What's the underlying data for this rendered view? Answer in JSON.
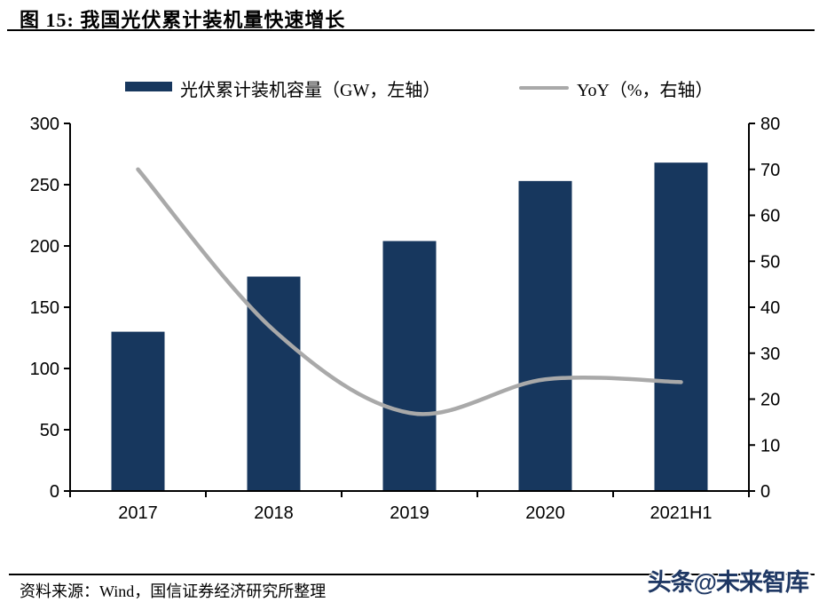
{
  "header": {
    "title": "图 15:  我国光伏累计装机量快速增长"
  },
  "legend": {
    "bar_label": "光伏累计装机容量（GW，左轴）",
    "line_label": "YoY（%，右轴）"
  },
  "colors": {
    "bar": "#17375E",
    "line": "#A9A9A9",
    "axis": "#000000",
    "watermark": "#1F3864"
  },
  "chart_data": {
    "type": "bar",
    "subtype": "bar+line combo",
    "categories": [
      "2017",
      "2018",
      "2019",
      "2020",
      "2021H1"
    ],
    "series": [
      {
        "name": "光伏累计装机容量（GW，左轴）",
        "type": "bar",
        "axis": "left",
        "color": "#17375E",
        "values": [
          130,
          175,
          204,
          253,
          268
        ]
      },
      {
        "name": "YoY（%，右轴）",
        "type": "line",
        "axis": "right",
        "color": "#A9A9A9",
        "smooth": true,
        "values": [
          70,
          35,
          17,
          24.3,
          23.7
        ]
      }
    ],
    "title": "我国光伏累计装机量快速增长",
    "xlabel": "",
    "ylabel_left": "GW",
    "ylabel_right": "%",
    "left_axis": {
      "min": 0,
      "max": 300,
      "ticks": [
        0,
        50,
        100,
        150,
        200,
        250,
        300
      ]
    },
    "right_axis": {
      "min": 0,
      "max": 80,
      "ticks": [
        0,
        10,
        20,
        30,
        40,
        50,
        60,
        70,
        80
      ]
    },
    "grid": false,
    "legend_position": "top"
  },
  "footer": {
    "source": "资料来源：Wind，国信证券经济研究所整理",
    "watermark": "头条@未来智库"
  }
}
